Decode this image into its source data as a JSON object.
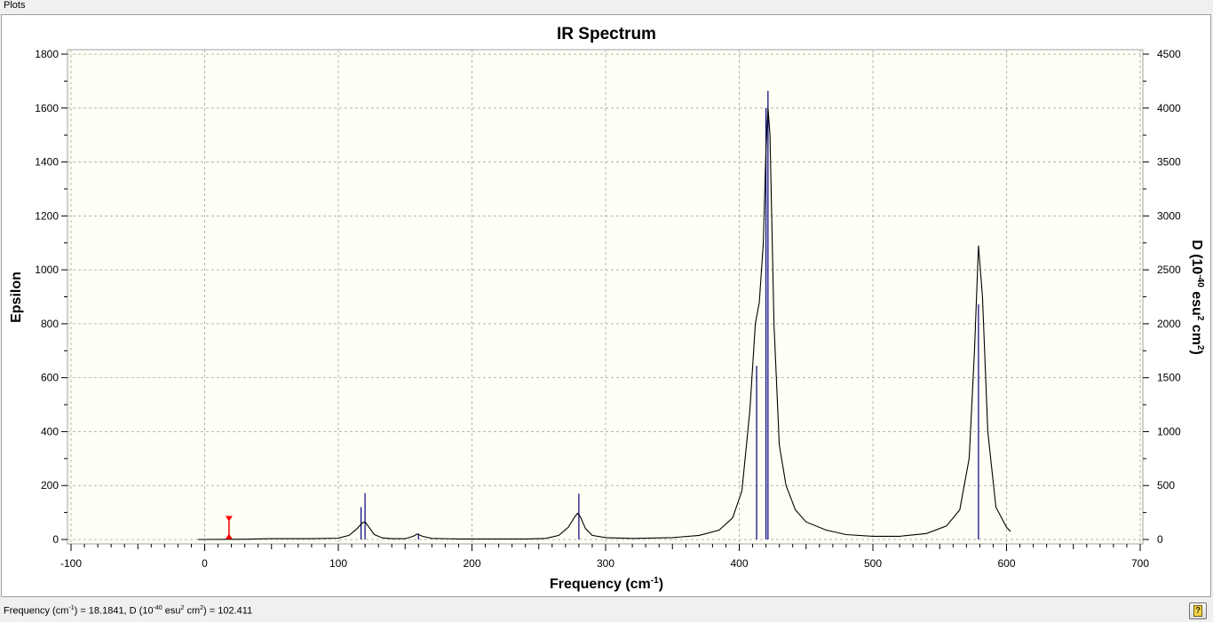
{
  "window": {
    "title": "Plots"
  },
  "status": {
    "freq_label": "Frequency (cm",
    "freq_sup": "-1",
    "mid_text": ") = 18.1841, D (10",
    "d_sup1": "-40",
    "d_unit1": " esu",
    "d_sup2": "2",
    "d_unit2": " cm",
    "d_sup3": "2",
    "d_value": ") = 102.411",
    "help_glyph": "?"
  },
  "colors": {
    "plot_background": "#fffff5",
    "spectrum_line": "#000000",
    "stick_lines": "#00007f",
    "grid": "#b4b4b4",
    "marker": "#ff0000"
  },
  "chart_data": {
    "type": "line",
    "title": "IR Spectrum",
    "xlabel": {
      "text": "Frequency (cm",
      "sup": "-1",
      "suffix": ")"
    },
    "ylabel": "Epsilon",
    "y2label": {
      "p1": "D (10",
      "s1": "-40",
      "p2": " esu",
      "s2": "2",
      "p3": " cm",
      "s3": "2",
      "p4": ")"
    },
    "xlim": [
      -100,
      700
    ],
    "ylim": [
      0,
      1800
    ],
    "y2lim": [
      0,
      4500
    ],
    "grid": true,
    "xticks": [
      "-100",
      "0",
      "100",
      "200",
      "300",
      "400",
      "500",
      "600",
      "700"
    ],
    "yticks": [
      "0",
      "200",
      "400",
      "600",
      "800",
      "1000",
      "1200",
      "1400",
      "1600",
      "1800"
    ],
    "y2ticks": [
      "0",
      "500",
      "1000",
      "1500",
      "2000",
      "2500",
      "3000",
      "3500",
      "4000",
      "4500"
    ],
    "series": [
      {
        "values_xy": [
          [
            -5,
            0
          ],
          [
            30,
            1
          ],
          [
            50,
            3
          ],
          [
            80,
            3
          ],
          [
            100,
            5
          ],
          [
            108,
            15
          ],
          [
            114,
            40
          ],
          [
            118,
            62
          ],
          [
            120,
            65
          ],
          [
            123,
            45
          ],
          [
            127,
            18
          ],
          [
            133,
            6
          ],
          [
            140,
            3
          ],
          [
            150,
            3
          ],
          [
            156,
            12
          ],
          [
            159,
            20
          ],
          [
            163,
            12
          ],
          [
            170,
            4
          ],
          [
            190,
            2
          ],
          [
            240,
            2
          ],
          [
            255,
            4
          ],
          [
            265,
            15
          ],
          [
            272,
            45
          ],
          [
            277,
            85
          ],
          [
            279,
            97
          ],
          [
            281,
            85
          ],
          [
            285,
            40
          ],
          [
            290,
            15
          ],
          [
            300,
            7
          ],
          [
            320,
            4
          ],
          [
            350,
            7
          ],
          [
            370,
            15
          ],
          [
            385,
            35
          ],
          [
            395,
            80
          ],
          [
            402,
            180
          ],
          [
            408,
            480
          ],
          [
            412,
            800
          ],
          [
            415,
            880
          ],
          [
            418,
            1100
          ],
          [
            420,
            1450
          ],
          [
            421.5,
            1600
          ],
          [
            423,
            1500
          ],
          [
            426,
            800
          ],
          [
            430,
            350
          ],
          [
            435,
            200
          ],
          [
            442,
            110
          ],
          [
            450,
            65
          ],
          [
            465,
            35
          ],
          [
            480,
            18
          ],
          [
            500,
            12
          ],
          [
            520,
            12
          ],
          [
            540,
            22
          ],
          [
            555,
            50
          ],
          [
            565,
            110
          ],
          [
            572,
            300
          ],
          [
            576,
            700
          ],
          [
            579,
            1090
          ],
          [
            582,
            900
          ],
          [
            586,
            400
          ],
          [
            592,
            120
          ],
          [
            600,
            45
          ],
          [
            603,
            30
          ]
        ]
      },
      {
        "type": "stick",
        "x": [
          117,
          120,
          160,
          280,
          413,
          420,
          421.5,
          579
        ],
        "d_values": [
          300,
          430,
          55,
          425,
          1610,
          4000,
          4160,
          2180
        ]
      }
    ],
    "marker": {
      "x": 18.1841,
      "d": 102.411
    }
  }
}
